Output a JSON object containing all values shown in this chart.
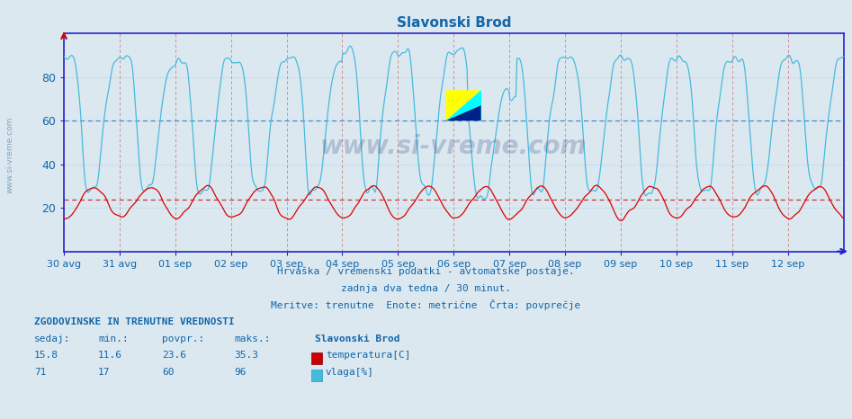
{
  "title": "Slavonski Brod",
  "bg_color": "#dce8f0",
  "plot_bg_color": "#dce8f0",
  "line_color_temp": "#dd0000",
  "line_color_hum": "#44bbdd",
  "axis_color": "#2222cc",
  "text_color": "#1166aa",
  "temp_min": 11.6,
  "temp_max": 35.3,
  "temp_avg": 23.6,
  "temp_cur": 15.8,
  "hum_min": 17,
  "hum_max": 96,
  "hum_avg": 60,
  "hum_cur": 71,
  "ylim": [
    0,
    100
  ],
  "yticks": [
    20,
    40,
    60,
    80
  ],
  "subtitle1": "Hrvaška / vremenski podatki - avtomatske postaje.",
  "subtitle2": "zadnja dva tedna / 30 minut.",
  "subtitle3": "Meritve: trenutne  Enote: metrične  Črta: povprečje",
  "xlabel_dates": [
    "30 avg",
    "31 avg",
    "01 sep",
    "02 sep",
    "03 sep",
    "04 sep",
    "05 sep",
    "06 sep",
    "07 sep",
    "08 sep",
    "09 sep",
    "10 sep",
    "11 sep",
    "12 sep"
  ],
  "watermark": "www.si-vreme.com",
  "n_points": 672
}
